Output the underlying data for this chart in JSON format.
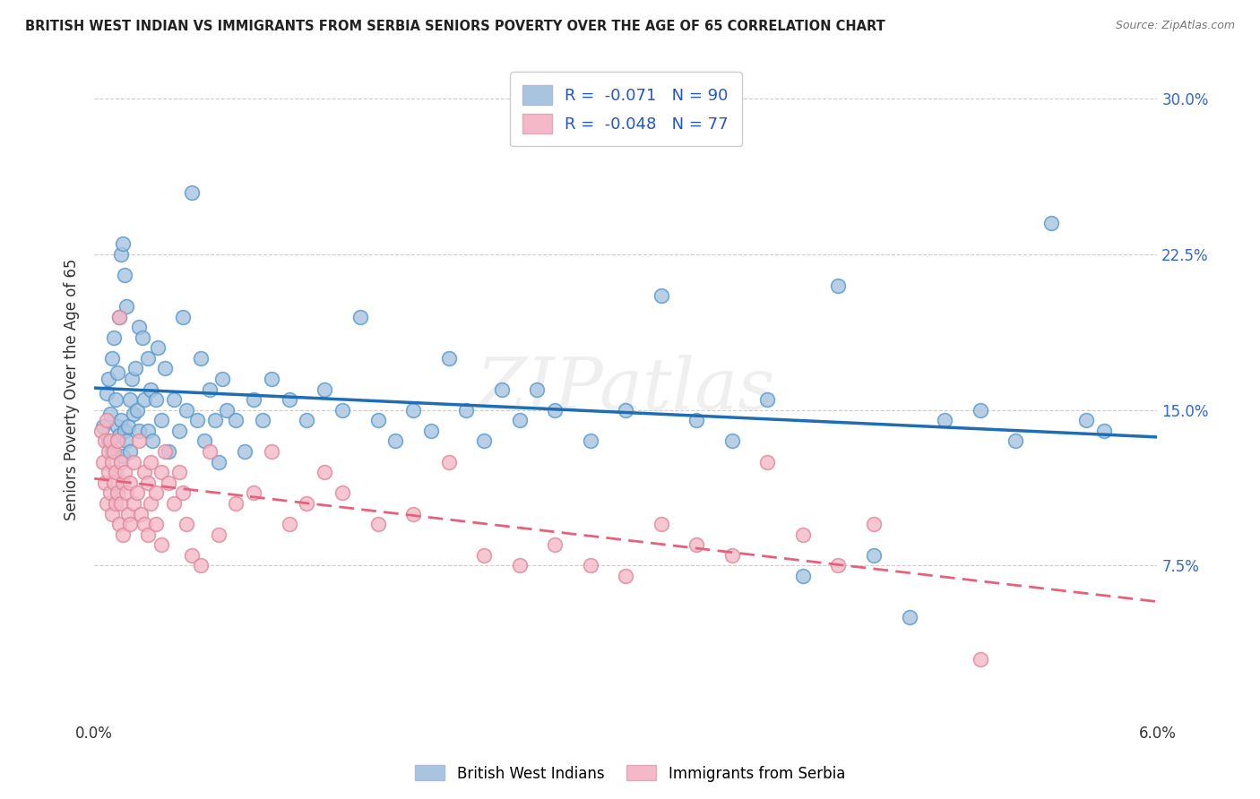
{
  "title": "BRITISH WEST INDIAN VS IMMIGRANTS FROM SERBIA SENIORS POVERTY OVER THE AGE OF 65 CORRELATION CHART",
  "source": "Source: ZipAtlas.com",
  "ylabel": "Seniors Poverty Over the Age of 65",
  "x_min": 0.0,
  "x_max": 6.0,
  "y_min": 0.0,
  "y_max": 32.0,
  "y_ticks": [
    7.5,
    15.0,
    22.5,
    30.0
  ],
  "legend_blue_r": "-0.071",
  "legend_blue_n": "90",
  "legend_pink_r": "-0.048",
  "legend_pink_n": "77",
  "legend_blue_label": "British West Indians",
  "legend_pink_label": "Immigrants from Serbia",
  "blue_color": "#a8c4e0",
  "pink_color": "#f4b8c8",
  "blue_line_color": "#1f6eb5",
  "pink_line_color": "#e8607a",
  "watermark_text": "ZIPatlas",
  "background_color": "#ffffff",
  "grid_color": "#cccccc",
  "blue_points": [
    [
      0.05,
      14.2
    ],
    [
      0.07,
      15.8
    ],
    [
      0.08,
      13.5
    ],
    [
      0.08,
      16.5
    ],
    [
      0.09,
      14.8
    ],
    [
      0.1,
      17.5
    ],
    [
      0.1,
      13.0
    ],
    [
      0.11,
      18.5
    ],
    [
      0.12,
      15.5
    ],
    [
      0.13,
      16.8
    ],
    [
      0.13,
      14.2
    ],
    [
      0.14,
      19.5
    ],
    [
      0.14,
      13.8
    ],
    [
      0.15,
      22.5
    ],
    [
      0.15,
      14.5
    ],
    [
      0.16,
      23.0
    ],
    [
      0.16,
      12.8
    ],
    [
      0.17,
      21.5
    ],
    [
      0.17,
      14.0
    ],
    [
      0.18,
      20.0
    ],
    [
      0.18,
      13.5
    ],
    [
      0.19,
      14.2
    ],
    [
      0.2,
      15.5
    ],
    [
      0.2,
      13.0
    ],
    [
      0.21,
      16.5
    ],
    [
      0.22,
      14.8
    ],
    [
      0.23,
      17.0
    ],
    [
      0.24,
      15.0
    ],
    [
      0.25,
      19.0
    ],
    [
      0.25,
      14.0
    ],
    [
      0.27,
      18.5
    ],
    [
      0.28,
      15.5
    ],
    [
      0.3,
      17.5
    ],
    [
      0.3,
      14.0
    ],
    [
      0.32,
      16.0
    ],
    [
      0.33,
      13.5
    ],
    [
      0.35,
      15.5
    ],
    [
      0.36,
      18.0
    ],
    [
      0.38,
      14.5
    ],
    [
      0.4,
      17.0
    ],
    [
      0.42,
      13.0
    ],
    [
      0.45,
      15.5
    ],
    [
      0.48,
      14.0
    ],
    [
      0.5,
      19.5
    ],
    [
      0.52,
      15.0
    ],
    [
      0.55,
      25.5
    ],
    [
      0.58,
      14.5
    ],
    [
      0.6,
      17.5
    ],
    [
      0.62,
      13.5
    ],
    [
      0.65,
      16.0
    ],
    [
      0.68,
      14.5
    ],
    [
      0.7,
      12.5
    ],
    [
      0.72,
      16.5
    ],
    [
      0.75,
      15.0
    ],
    [
      0.8,
      14.5
    ],
    [
      0.85,
      13.0
    ],
    [
      0.9,
      15.5
    ],
    [
      0.95,
      14.5
    ],
    [
      1.0,
      16.5
    ],
    [
      1.1,
      15.5
    ],
    [
      1.2,
      14.5
    ],
    [
      1.3,
      16.0
    ],
    [
      1.4,
      15.0
    ],
    [
      1.5,
      19.5
    ],
    [
      1.6,
      14.5
    ],
    [
      1.7,
      13.5
    ],
    [
      1.8,
      15.0
    ],
    [
      1.9,
      14.0
    ],
    [
      2.0,
      17.5
    ],
    [
      2.1,
      15.0
    ],
    [
      2.2,
      13.5
    ],
    [
      2.3,
      16.0
    ],
    [
      2.4,
      14.5
    ],
    [
      2.5,
      16.0
    ],
    [
      2.6,
      15.0
    ],
    [
      2.8,
      13.5
    ],
    [
      3.0,
      15.0
    ],
    [
      3.2,
      20.5
    ],
    [
      3.4,
      14.5
    ],
    [
      3.6,
      13.5
    ],
    [
      3.8,
      15.5
    ],
    [
      4.0,
      7.0
    ],
    [
      4.2,
      21.0
    ],
    [
      4.4,
      8.0
    ],
    [
      4.6,
      5.0
    ],
    [
      4.8,
      14.5
    ],
    [
      5.0,
      15.0
    ],
    [
      5.2,
      13.5
    ],
    [
      5.4,
      24.0
    ],
    [
      5.6,
      14.5
    ],
    [
      5.7,
      14.0
    ]
  ],
  "pink_points": [
    [
      0.04,
      14.0
    ],
    [
      0.05,
      12.5
    ],
    [
      0.06,
      13.5
    ],
    [
      0.06,
      11.5
    ],
    [
      0.07,
      10.5
    ],
    [
      0.07,
      14.5
    ],
    [
      0.08,
      13.0
    ],
    [
      0.08,
      12.0
    ],
    [
      0.09,
      11.0
    ],
    [
      0.09,
      13.5
    ],
    [
      0.1,
      12.5
    ],
    [
      0.1,
      10.0
    ],
    [
      0.11,
      13.0
    ],
    [
      0.11,
      11.5
    ],
    [
      0.12,
      12.0
    ],
    [
      0.12,
      10.5
    ],
    [
      0.13,
      13.5
    ],
    [
      0.13,
      11.0
    ],
    [
      0.14,
      19.5
    ],
    [
      0.14,
      9.5
    ],
    [
      0.15,
      12.5
    ],
    [
      0.15,
      10.5
    ],
    [
      0.16,
      11.5
    ],
    [
      0.16,
      9.0
    ],
    [
      0.17,
      12.0
    ],
    [
      0.18,
      11.0
    ],
    [
      0.19,
      10.0
    ],
    [
      0.2,
      11.5
    ],
    [
      0.2,
      9.5
    ],
    [
      0.22,
      12.5
    ],
    [
      0.22,
      10.5
    ],
    [
      0.24,
      11.0
    ],
    [
      0.25,
      13.5
    ],
    [
      0.26,
      10.0
    ],
    [
      0.28,
      12.0
    ],
    [
      0.28,
      9.5
    ],
    [
      0.3,
      11.5
    ],
    [
      0.3,
      9.0
    ],
    [
      0.32,
      12.5
    ],
    [
      0.32,
      10.5
    ],
    [
      0.35,
      11.0
    ],
    [
      0.35,
      9.5
    ],
    [
      0.38,
      12.0
    ],
    [
      0.38,
      8.5
    ],
    [
      0.4,
      13.0
    ],
    [
      0.42,
      11.5
    ],
    [
      0.45,
      10.5
    ],
    [
      0.48,
      12.0
    ],
    [
      0.5,
      11.0
    ],
    [
      0.52,
      9.5
    ],
    [
      0.55,
      8.0
    ],
    [
      0.6,
      7.5
    ],
    [
      0.65,
      13.0
    ],
    [
      0.7,
      9.0
    ],
    [
      0.8,
      10.5
    ],
    [
      0.9,
      11.0
    ],
    [
      1.0,
      13.0
    ],
    [
      1.1,
      9.5
    ],
    [
      1.2,
      10.5
    ],
    [
      1.3,
      12.0
    ],
    [
      1.4,
      11.0
    ],
    [
      1.6,
      9.5
    ],
    [
      1.8,
      10.0
    ],
    [
      2.0,
      12.5
    ],
    [
      2.2,
      8.0
    ],
    [
      2.4,
      7.5
    ],
    [
      2.6,
      8.5
    ],
    [
      2.8,
      7.5
    ],
    [
      3.0,
      7.0
    ],
    [
      3.2,
      9.5
    ],
    [
      3.4,
      8.5
    ],
    [
      3.6,
      8.0
    ],
    [
      3.8,
      12.5
    ],
    [
      4.0,
      9.0
    ],
    [
      4.2,
      7.5
    ],
    [
      4.4,
      9.5
    ],
    [
      5.0,
      3.0
    ]
  ]
}
